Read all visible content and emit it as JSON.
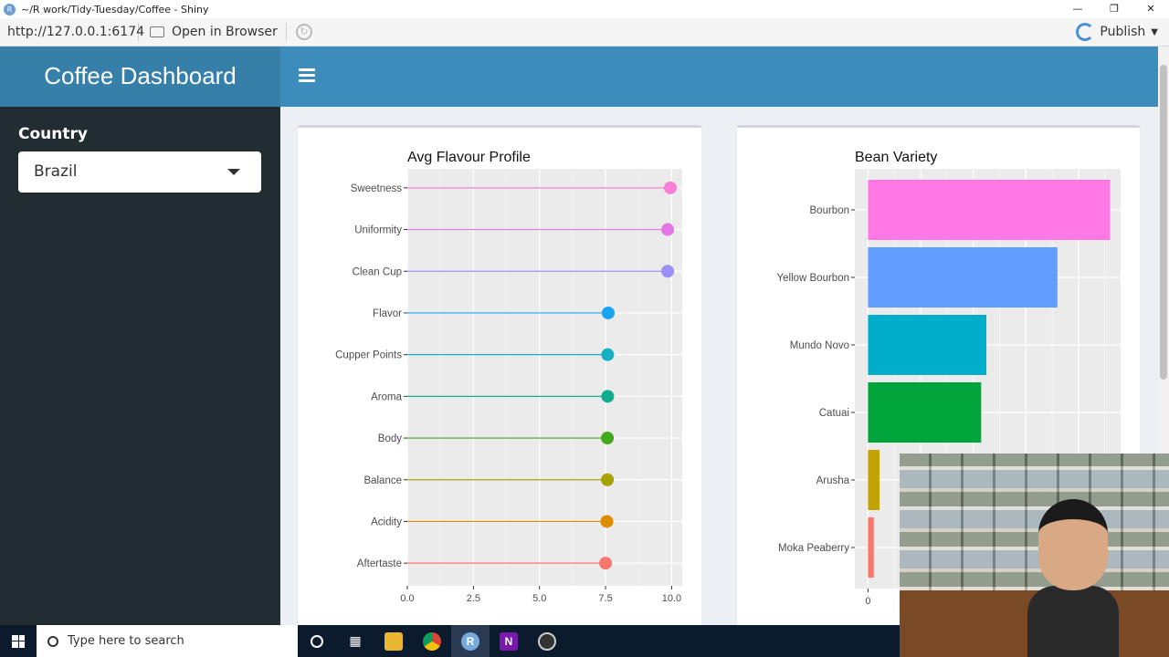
{
  "titlebar": {
    "title": "~/R work/Tidy-Tuesday/Coffee - Shiny",
    "app_icon": "R"
  },
  "addressbar": {
    "url": "http://127.0.0.1:6174",
    "open_label": "Open in Browser",
    "publish_label": "Publish"
  },
  "header": {
    "brand": "Coffee Dashboard"
  },
  "sidebar": {
    "country_label": "Country",
    "country_selected": "Brazil"
  },
  "chart_data": [
    {
      "type": "lollipop",
      "title": "Avg Flavour Profile",
      "categories": [
        "Sweetness",
        "Uniformity",
        "Clean Cup",
        "Flavor",
        "Cupper Points",
        "Aroma",
        "Body",
        "Balance",
        "Acidity",
        "Aftertaste"
      ],
      "values": [
        9.95,
        9.85,
        9.85,
        7.6,
        7.58,
        7.58,
        7.57,
        7.57,
        7.55,
        7.5
      ],
      "colors": [
        "#f87ed6",
        "#e277e6",
        "#9b8ef5",
        "#19a3f0",
        "#17afc4",
        "#10ae8f",
        "#40a91c",
        "#a6a200",
        "#dc8d00",
        "#f8766d"
      ],
      "xlim": [
        0,
        10.4
      ],
      "xticks": [
        "0.0",
        "2.5",
        "5.0",
        "7.5",
        "10.0"
      ],
      "xtick_values": [
        0,
        2.5,
        5,
        7.5,
        10
      ]
    },
    {
      "type": "bar",
      "orientation": "horizontal",
      "title": "Bean Variety",
      "categories": [
        "Bourbon",
        "Yellow Bourbon",
        "Mundo Novo",
        "Catuai",
        "Arusha",
        "Moka Peaberry"
      ],
      "values": [
        46,
        36,
        22.5,
        21.5,
        2.2,
        1.1
      ],
      "colors": [
        "#ff78e6",
        "#619cff",
        "#00aecb",
        "#00a43b",
        "#c2a205",
        "#f8766d"
      ],
      "xlim": [
        -2.5,
        48
      ],
      "xticks": [
        "0"
      ],
      "xtick_values": [
        0
      ]
    }
  ],
  "taskbar": {
    "search_placeholder": "Type here to search",
    "rstudio_icon": "R",
    "onenote_icon": "N"
  }
}
